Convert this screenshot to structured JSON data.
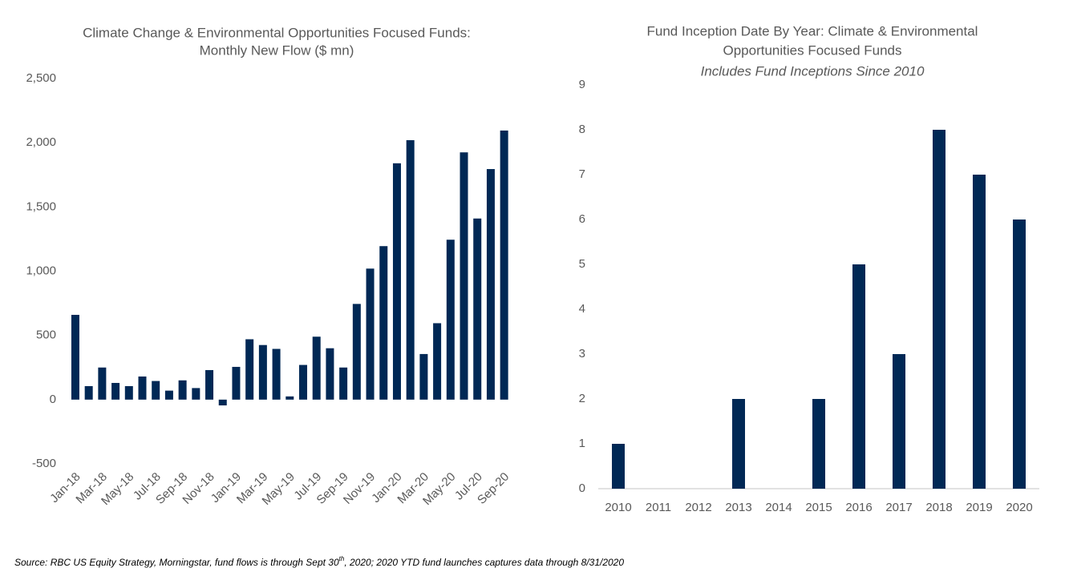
{
  "chart_data": [
    {
      "type": "bar",
      "title": [
        "Climate Change & Environmental Opportunities Focused Funds:",
        "Monthly New Flow ($ mn)"
      ],
      "categories": [
        "Jan-18",
        null,
        "Mar-18",
        null,
        "May-18",
        null,
        "Jul-18",
        null,
        "Sep-18",
        null,
        "Nov-18",
        null,
        "Jan-19",
        null,
        "Mar-19",
        null,
        "May-19",
        null,
        "Jul-19",
        null,
        "Sep-19",
        null,
        "Nov-19",
        null,
        "Jan-20",
        null,
        "Mar-20",
        null,
        "May-20",
        null,
        "Jul-20",
        null,
        "Sep-20"
      ],
      "values": [
        660,
        105,
        250,
        130,
        105,
        180,
        145,
        70,
        150,
        90,
        230,
        -45,
        255,
        470,
        425,
        395,
        25,
        270,
        490,
        400,
        250,
        745,
        1020,
        1195,
        1840,
        2020,
        355,
        595,
        1245,
        1925,
        1410,
        1795,
        2095
      ],
      "color": "#002855",
      "ylim": [
        -500,
        2500
      ],
      "yticks": [
        -500,
        0,
        500,
        {
          "value": 1000,
          "label": "1,000"
        },
        {
          "value": 1500,
          "label": "1,500"
        },
        {
          "value": 2000,
          "label": "2,000"
        },
        {
          "value": 2500,
          "label": "2,500"
        }
      ],
      "grid": false
    },
    {
      "type": "bar",
      "title": [
        "Fund  Inception Date By Year: Climate  & Environmental",
        "Opportunities  Focused  Funds"
      ],
      "subtitle": "Includes Fund Inceptions Since 2010",
      "categories": [
        "2010",
        "2011",
        "2012",
        "2013",
        "2014",
        "2015",
        "2016",
        "2017",
        "2018",
        "2019",
        "2020"
      ],
      "values": [
        1,
        0,
        0,
        2,
        0,
        2,
        5,
        3,
        8,
        7,
        6
      ],
      "color": "#002855",
      "ylim": [
        0,
        9
      ],
      "yticks": [
        0,
        1,
        2,
        3,
        4,
        5,
        6,
        7,
        8,
        9
      ],
      "grid": false
    }
  ],
  "footnote": [
    "Source: RBC US Equity Strategy, Morningstar, fund flows is through Sept 30",
    "th",
    ", 2020; 2020 YTD fund launches captures data through 8/31/2020"
  ]
}
